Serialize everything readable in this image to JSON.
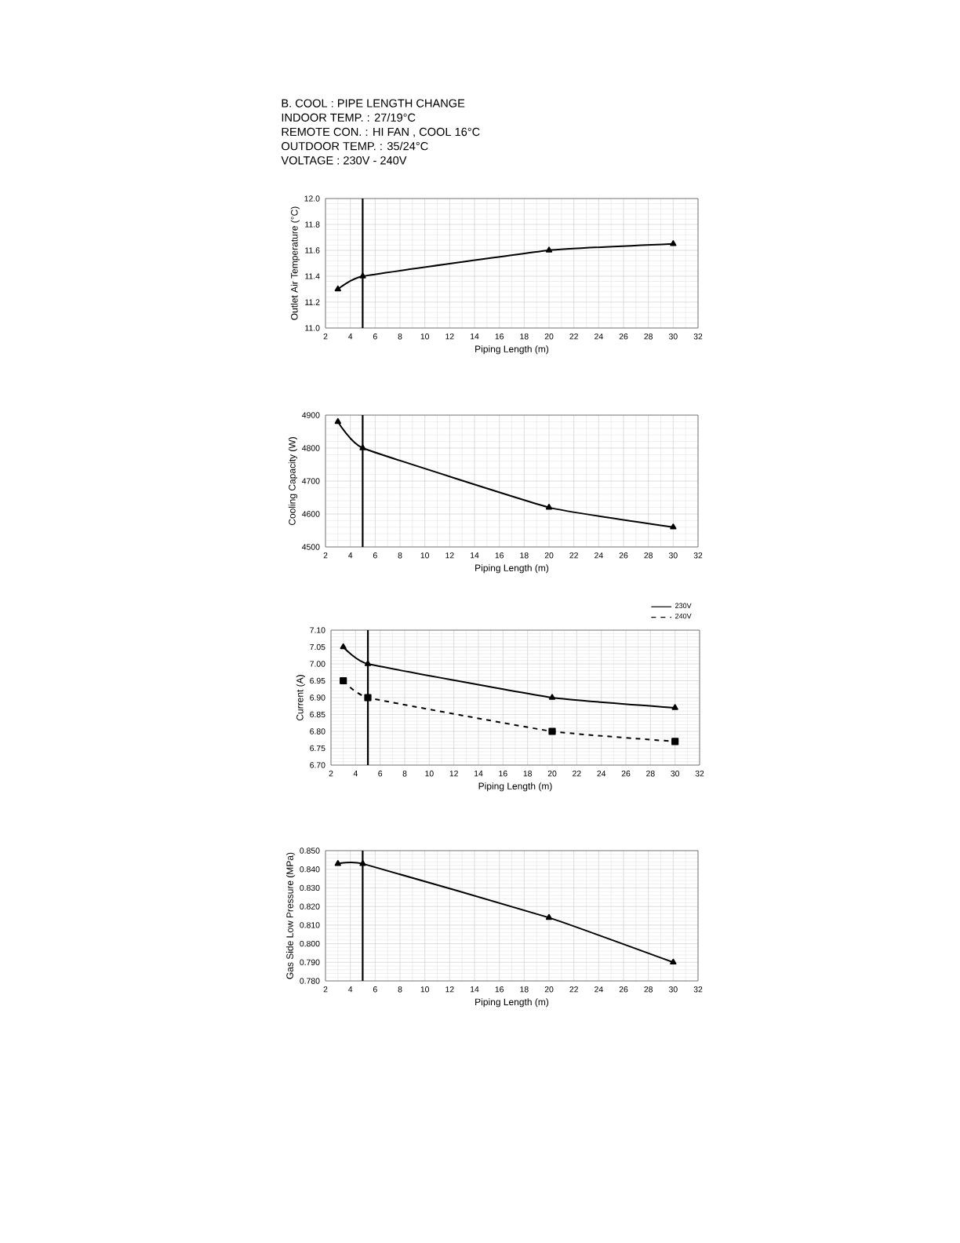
{
  "chart_data": [
    {
      "type": "line",
      "title": "B. COOL : PIPE LENGTH CHANGE",
      "annotations": [
        "INDOOR TEMP. : 27/19°C",
        "REMOTE CON. : HI FAN , COOL 16°C",
        "OUTDOOR TEMP. : 35/24°C",
        "VOLTAGE : 230V - 240V"
      ],
      "xlabel": "Piping Length (m)",
      "ylabel": "Outlet Air Temperature (°C)",
      "x": [
        3,
        5,
        20,
        30
      ],
      "series": [
        {
          "color": "#000000",
          "values": [
            11.3,
            11.4,
            11.6,
            11.65
          ]
        }
      ],
      "xlim": [
        2,
        32
      ],
      "xticks": [
        2,
        4,
        6,
        8,
        10,
        12,
        14,
        16,
        18,
        20,
        22,
        24,
        26,
        28,
        30,
        32
      ],
      "ylim": [
        11.0,
        12.0
      ],
      "yticks": [
        {
          "value": 11.0,
          "label": "11.0"
        },
        {
          "value": 11.2,
          "label": "11.2"
        },
        {
          "value": 11.4,
          "label": "11.4"
        },
        {
          "value": 11.6,
          "label": "11.6"
        },
        {
          "value": 11.8,
          "label": "11.8"
        },
        {
          "value": 12.0,
          "label": "12.0"
        }
      ],
      "ref_lines": [
        {
          "axis": "x",
          "value": 5,
          "color": "#000000"
        }
      ],
      "grid": true,
      "marker": "triangle",
      "line_style": "solid"
    },
    {
      "type": "line",
      "xlabel": "Piping Length (m)",
      "ylabel": "Cooling Capacity (W)",
      "x": [
        3,
        5,
        20,
        30
      ],
      "series": [
        {
          "color": "#000000",
          "values": [
            4880,
            4800,
            4620,
            4560
          ]
        }
      ],
      "xlim": [
        2,
        32
      ],
      "xticks": [
        2,
        4,
        6,
        8,
        10,
        12,
        14,
        16,
        18,
        20,
        22,
        24,
        26,
        28,
        30,
        32
      ],
      "ylim": [
        4500,
        4900
      ],
      "yticks": [
        4500,
        4600,
        4700,
        4800,
        4900
      ],
      "ref_lines": [
        {
          "axis": "x",
          "value": 5,
          "color": "#000000"
        }
      ],
      "grid": true,
      "marker": "triangle",
      "line_style": "solid"
    },
    {
      "type": "line",
      "xlabel": "Piping Length (m)",
      "ylabel": "Current (A)",
      "x": [
        3,
        5,
        20,
        30
      ],
      "series": [
        {
          "name": "230V",
          "color": "#000000",
          "values": [
            7.05,
            7.0,
            6.9,
            6.87
          ],
          "marker": "triangle",
          "line_style": "solid"
        },
        {
          "name": "240V",
          "color": "#000000",
          "values": [
            6.95,
            6.9,
            6.8,
            6.77
          ],
          "marker": "square",
          "line_style": "dashed"
        }
      ],
      "xlim": [
        2,
        32
      ],
      "xticks": [
        2,
        4,
        6,
        8,
        10,
        12,
        14,
        16,
        18,
        20,
        22,
        24,
        26,
        28,
        30,
        32
      ],
      "ylim": [
        6.7,
        7.1
      ],
      "yticks": [
        {
          "value": 6.7,
          "label": "6.70"
        },
        {
          "value": 6.75,
          "label": "6.75"
        },
        {
          "value": 6.8,
          "label": "6.80"
        },
        {
          "value": 6.85,
          "label": "6.85"
        },
        {
          "value": 6.9,
          "label": "6.90"
        },
        {
          "value": 6.95,
          "label": "6.95"
        },
        {
          "value": 7.0,
          "label": "7.00"
        },
        {
          "value": 7.05,
          "label": "7.05"
        },
        {
          "value": 7.1,
          "label": "7.10"
        }
      ],
      "ref_lines": [
        {
          "axis": "x",
          "value": 5,
          "color": "#000000"
        }
      ],
      "grid": true,
      "legend": "top right"
    },
    {
      "type": "line",
      "xlabel": "Piping Length (m)",
      "ylabel": "Gas Side Low Pressure (MPa)",
      "x": [
        3,
        5,
        20,
        30
      ],
      "series": [
        {
          "color": "#000000",
          "values": [
            0.843,
            0.843,
            0.814,
            0.79
          ]
        }
      ],
      "xlim": [
        2,
        32
      ],
      "xticks": [
        2,
        4,
        6,
        8,
        10,
        12,
        14,
        16,
        18,
        20,
        22,
        24,
        26,
        28,
        30,
        32
      ],
      "ylim": [
        0.78,
        0.85
      ],
      "yticks": [
        {
          "value": 0.78,
          "label": "0.780"
        },
        {
          "value": 0.79,
          "label": "0.790"
        },
        {
          "value": 0.8,
          "label": "0.800"
        },
        {
          "value": 0.81,
          "label": "0.810"
        },
        {
          "value": 0.82,
          "label": "0.820"
        },
        {
          "value": 0.83,
          "label": "0.830"
        },
        {
          "value": 0.84,
          "label": "0.840"
        },
        {
          "value": 0.85,
          "label": "0.850"
        }
      ],
      "ref_lines": [
        {
          "axis": "x",
          "value": 5,
          "color": "#000000"
        }
      ],
      "grid": true,
      "marker": "triangle",
      "line_style": "solid"
    }
  ]
}
